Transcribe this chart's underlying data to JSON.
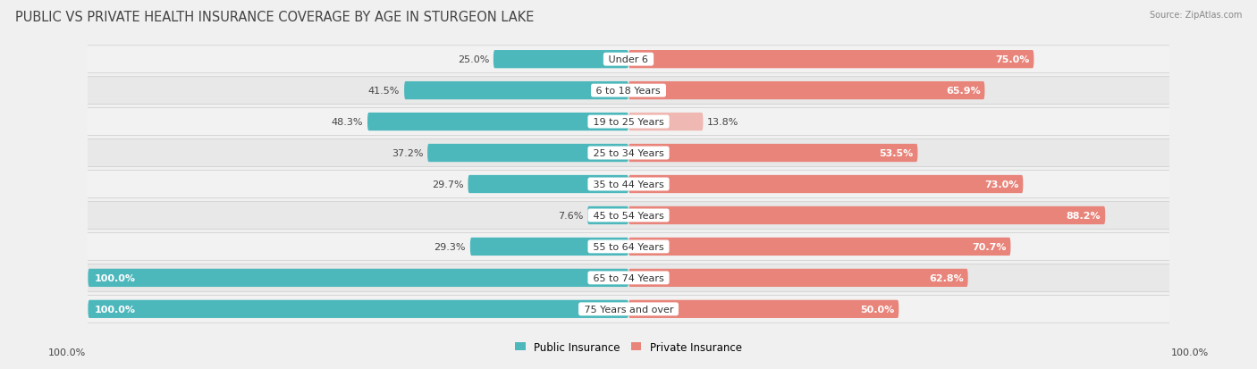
{
  "title": "PUBLIC VS PRIVATE HEALTH INSURANCE COVERAGE BY AGE IN STURGEON LAKE",
  "source": "Source: ZipAtlas.com",
  "categories": [
    "Under 6",
    "6 to 18 Years",
    "19 to 25 Years",
    "25 to 34 Years",
    "35 to 44 Years",
    "45 to 54 Years",
    "55 to 64 Years",
    "65 to 74 Years",
    "75 Years and over"
  ],
  "public_values": [
    25.0,
    41.5,
    48.3,
    37.2,
    29.7,
    7.6,
    29.3,
    100.0,
    100.0
  ],
  "private_values": [
    75.0,
    65.9,
    13.8,
    53.5,
    73.0,
    88.2,
    70.7,
    62.8,
    50.0
  ],
  "public_color": "#4db8bc",
  "private_color": "#e8847a",
  "private_color_light": "#f0b8b2",
  "row_bg_light": "#f2f2f2",
  "row_bg_dark": "#e8e8e8",
  "background_color": "#f0f0f0",
  "title_fontsize": 10.5,
  "label_fontsize": 8.0,
  "value_fontsize": 8.0,
  "legend_fontsize": 8.5,
  "max_value": 100.0,
  "private_light_threshold": 14.0
}
